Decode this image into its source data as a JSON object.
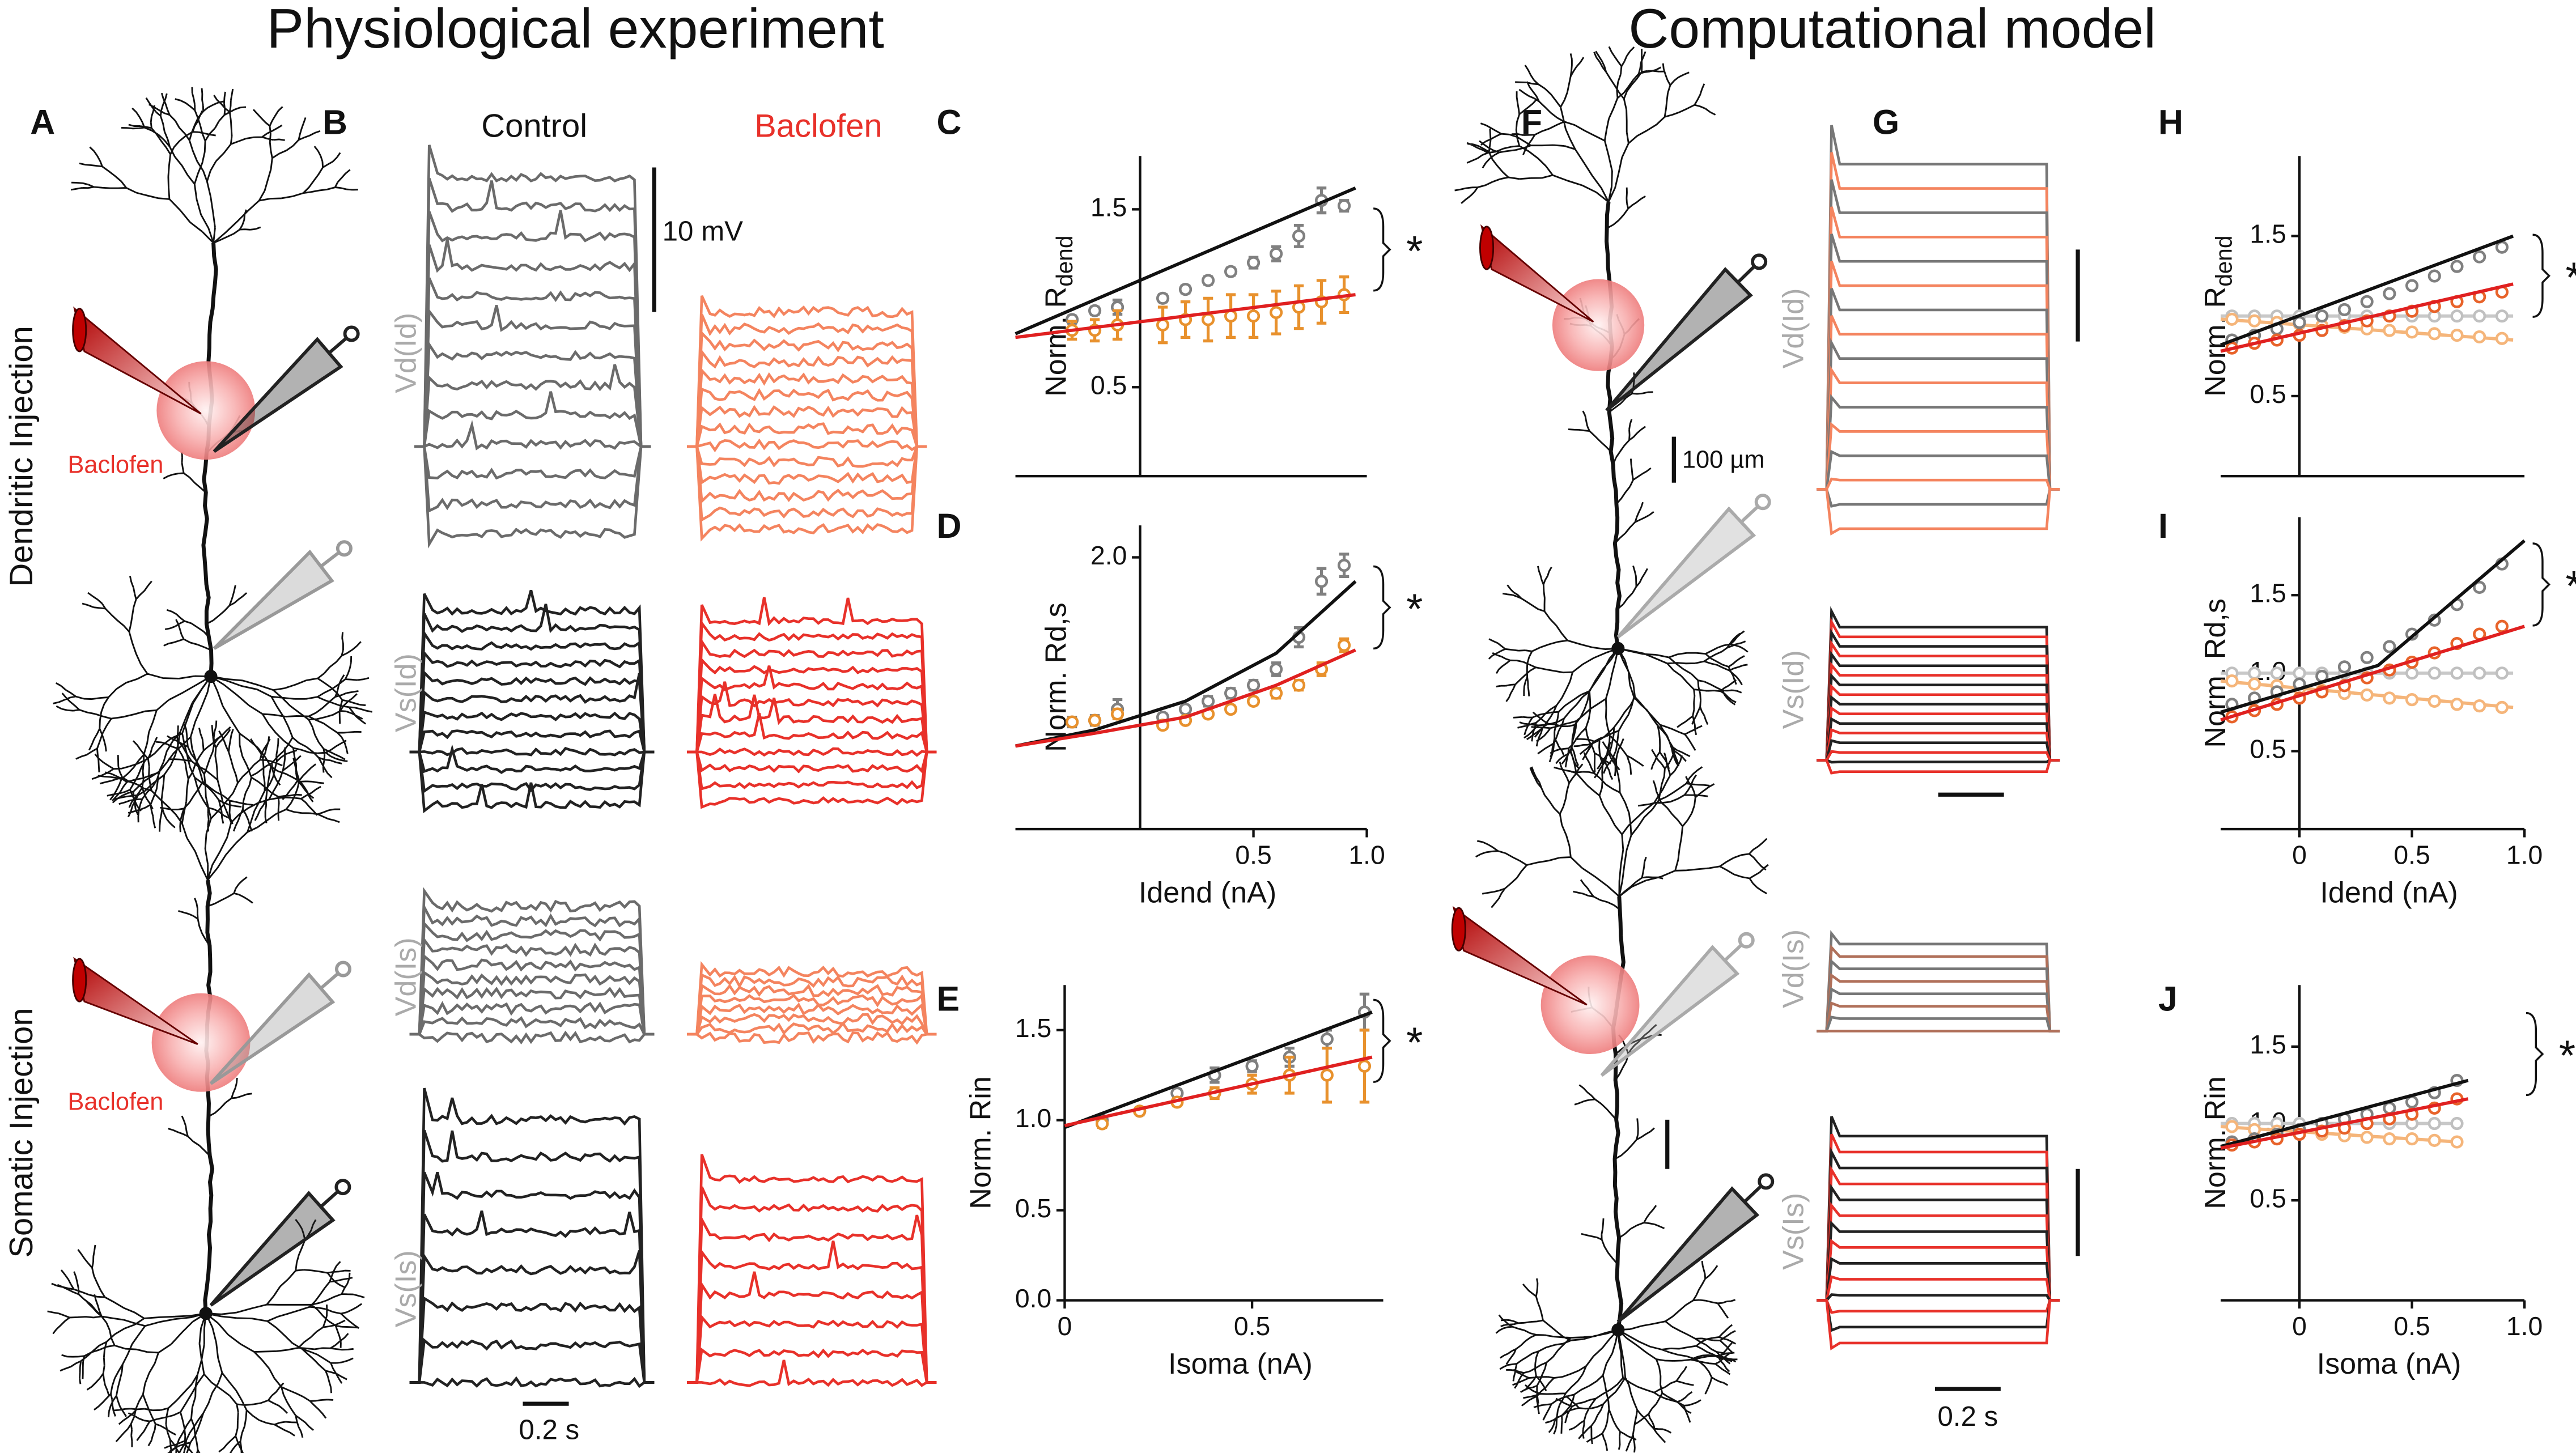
{
  "figure": {
    "titles": [
      "Physiological experiment",
      "Computational model"
    ],
    "panels": [
      "A",
      "B",
      "C",
      "D",
      "E",
      "F",
      "G",
      "H",
      "I",
      "J"
    ],
    "conditions": [
      "Control",
      "Baclofen"
    ],
    "injections": [
      "Dendritic Injection",
      "Somatic Injection"
    ],
    "drug_labels": [
      "Baclofen",
      "Baclofen"
    ],
    "trace_labels_B": [
      "Vd(Id)",
      "Vs(Id)",
      "Vd(Is)",
      "Vs(Is)"
    ],
    "trace_labels_G": [
      "Vd(Id)",
      "Vs(Id)",
      "Vd(Is)",
      "Vs(Is)"
    ],
    "scale_bars": [
      "10 mV",
      "0.2 s",
      "100 µm",
      "0.2 s"
    ]
  },
  "chart_data": [
    {
      "type": "scatter",
      "ylabel": "Norm. R",
      "ylabel_sub": "dend",
      "annotation": "*",
      "xlim": [
        -0.55,
        1.0
      ],
      "ylim": [
        0,
        1.8
      ],
      "xticks": [],
      "yticks": [
        0.5,
        1.5
      ],
      "series": [
        {
          "mode": "markers",
          "color": "#808080",
          "x": [
            -0.3,
            -0.2,
            -0.1,
            0.1,
            0.2,
            0.3,
            0.4,
            0.5,
            0.6,
            0.7,
            0.8,
            0.9
          ],
          "values": [
            0.88,
            0.93,
            0.95,
            1.0,
            1.05,
            1.1,
            1.15,
            1.2,
            1.25,
            1.35,
            1.55,
            1.52
          ],
          "errors": [
            0.02,
            0.02,
            0.04,
            0.02,
            0.02,
            0.02,
            0.02,
            0.03,
            0.04,
            0.06,
            0.07,
            0.03
          ]
        },
        {
          "mode": "markers",
          "color": "#e8912d",
          "x": [
            -0.3,
            -0.2,
            -0.1,
            0.1,
            0.2,
            0.3,
            0.4,
            0.5,
            0.6,
            0.7,
            0.8,
            0.9
          ],
          "values": [
            0.82,
            0.82,
            0.85,
            0.85,
            0.88,
            0.88,
            0.9,
            0.9,
            0.92,
            0.95,
            0.98,
            1.02
          ],
          "errors": [
            0.05,
            0.06,
            0.08,
            0.1,
            0.1,
            0.12,
            0.12,
            0.12,
            0.12,
            0.12,
            0.12,
            0.1
          ]
        },
        {
          "mode": "line",
          "color": "#111111",
          "x": [
            -0.55,
            0.95
          ],
          "values": [
            0.8,
            1.62
          ]
        },
        {
          "mode": "line",
          "color": "#e02020",
          "x": [
            -0.55,
            0.95
          ],
          "values": [
            0.78,
            1.02
          ]
        }
      ]
    },
    {
      "type": "scatter",
      "ylabel": "Norm. Rd,s",
      "xlabel": "Idend (nA)",
      "annotation": "*",
      "xlim": [
        -0.55,
        1.0
      ],
      "ylim": [
        0.3,
        2.2
      ],
      "xticks": [
        0.5,
        {
          "value": 1.0,
          "label": "1.0"
        }
      ],
      "yticks": [
        {
          "value": 2.0,
          "label": "2.0"
        }
      ],
      "series": [
        {
          "mode": "markers",
          "color": "#808080",
          "x": [
            -0.3,
            -0.2,
            -0.1,
            0.1,
            0.2,
            0.3,
            0.4,
            0.5,
            0.6,
            0.7,
            0.8,
            0.9
          ],
          "values": [
            0.97,
            0.98,
            1.05,
            1.0,
            1.05,
            1.1,
            1.15,
            1.2,
            1.3,
            1.5,
            1.85,
            1.95
          ],
          "errors": [
            0.03,
            0.03,
            0.06,
            0.02,
            0.02,
            0.03,
            0.03,
            0.03,
            0.04,
            0.06,
            0.08,
            0.07
          ]
        },
        {
          "mode": "markers",
          "color": "#e8912d",
          "x": [
            -0.3,
            -0.2,
            -0.1,
            0.1,
            0.2,
            0.3,
            0.4,
            0.5,
            0.6,
            0.7,
            0.8,
            0.9
          ],
          "values": [
            0.97,
            0.98,
            1.02,
            0.95,
            0.98,
            1.02,
            1.05,
            1.1,
            1.15,
            1.2,
            1.3,
            1.45
          ],
          "errors": [
            0.02,
            0.02,
            0.03,
            0.02,
            0.02,
            0.02,
            0.02,
            0.02,
            0.03,
            0.03,
            0.04,
            0.04
          ]
        },
        {
          "mode": "line",
          "color": "#111111",
          "x": [
            -0.55,
            -0.2,
            0.2,
            0.6,
            0.95
          ],
          "values": [
            0.82,
            0.92,
            1.1,
            1.4,
            1.85
          ]
        },
        {
          "mode": "line",
          "color": "#e02020",
          "x": [
            -0.55,
            -0.2,
            0.2,
            0.6,
            0.95
          ],
          "values": [
            0.82,
            0.9,
            1.0,
            1.2,
            1.42
          ]
        }
      ]
    },
    {
      "type": "scatter",
      "ylabel": "Norm. Rin",
      "xlabel": "Isoma (nA)",
      "annotation": "*",
      "xlim": [
        0,
        0.85
      ],
      "ylim": [
        0,
        1.75
      ],
      "xticks": [
        0,
        0.5
      ],
      "yticks": [
        {
          "value": 0.0,
          "label": "0.0"
        },
        0.5,
        {
          "value": 1.0,
          "label": "1.0"
        },
        1.5
      ],
      "series": [
        {
          "mode": "markers",
          "color": "#808080",
          "x": [
            0.1,
            0.2,
            0.3,
            0.4,
            0.5,
            0.6,
            0.7,
            0.8
          ],
          "values": [
            1.0,
            1.05,
            1.15,
            1.25,
            1.3,
            1.35,
            1.45,
            1.6
          ],
          "errors": [
            0.02,
            0.02,
            0.02,
            0.04,
            0.03,
            0.05,
            0.05,
            0.1
          ]
        },
        {
          "mode": "markers",
          "color": "#e8912d",
          "x": [
            0.1,
            0.2,
            0.3,
            0.4,
            0.5,
            0.6,
            0.7,
            0.8
          ],
          "values": [
            0.98,
            1.05,
            1.1,
            1.15,
            1.2,
            1.25,
            1.25,
            1.3
          ],
          "errors": [
            0.02,
            0.02,
            0.02,
            0.03,
            0.05,
            0.1,
            0.15,
            0.2
          ]
        },
        {
          "mode": "line",
          "color": "#111111",
          "x": [
            0,
            0.82
          ],
          "values": [
            0.96,
            1.6
          ]
        },
        {
          "mode": "line",
          "color": "#e02020",
          "x": [
            0,
            0.82
          ],
          "values": [
            0.97,
            1.35
          ]
        }
      ]
    },
    {
      "type": "scatter",
      "ylabel": "Norm. R",
      "ylabel_sub": "dend",
      "annotation": "*",
      "xlim": [
        -0.35,
        1.0
      ],
      "ylim": [
        0,
        2.0
      ],
      "xticks": [],
      "yticks": [
        0.5,
        1.5
      ],
      "series": [
        {
          "mode": "line",
          "color": "#c8c8c8",
          "x": [
            -0.35,
            0.95
          ],
          "values": [
            1.0,
            1.0
          ]
        },
        {
          "mode": "line",
          "color": "#f5b57a",
          "x": [
            -0.35,
            0.95
          ],
          "values": [
            0.98,
            0.85
          ]
        },
        {
          "mode": "markers",
          "color": "#c0c0c0",
          "x": [
            -0.3,
            -0.2,
            -0.1,
            0,
            0.1,
            0.2,
            0.3,
            0.4,
            0.5,
            0.6,
            0.7,
            0.8,
            0.9
          ],
          "values": [
            1.0,
            1.0,
            1.0,
            1.0,
            1.0,
            1.0,
            1.0,
            1.0,
            1.0,
            1.0,
            1.0,
            1.0,
            1.0
          ]
        },
        {
          "mode": "markers",
          "color": "#f5b57a",
          "x": [
            -0.3,
            -0.2,
            -0.1,
            0,
            0.1,
            0.2,
            0.3,
            0.4,
            0.5,
            0.6,
            0.7,
            0.8,
            0.9
          ],
          "values": [
            0.98,
            0.97,
            0.96,
            0.95,
            0.94,
            0.93,
            0.92,
            0.91,
            0.9,
            0.89,
            0.88,
            0.87,
            0.86
          ]
        },
        {
          "mode": "markers",
          "color": "#808080",
          "x": [
            -0.3,
            -0.2,
            -0.1,
            0,
            0.1,
            0.2,
            0.3,
            0.4,
            0.5,
            0.6,
            0.7,
            0.8,
            0.9
          ],
          "values": [
            0.85,
            0.88,
            0.92,
            0.96,
            1.0,
            1.04,
            1.09,
            1.14,
            1.19,
            1.25,
            1.31,
            1.37,
            1.43
          ]
        },
        {
          "mode": "markers",
          "color": "#e8632a",
          "x": [
            -0.3,
            -0.2,
            -0.1,
            0,
            0.1,
            0.2,
            0.3,
            0.4,
            0.5,
            0.6,
            0.7,
            0.8,
            0.9
          ],
          "values": [
            0.8,
            0.83,
            0.85,
            0.88,
            0.91,
            0.94,
            0.97,
            1.0,
            1.03,
            1.06,
            1.09,
            1.12,
            1.15
          ]
        },
        {
          "mode": "line",
          "color": "#111111",
          "x": [
            -0.35,
            0.95
          ],
          "values": [
            0.82,
            1.5
          ]
        },
        {
          "mode": "line",
          "color": "#e02020",
          "x": [
            -0.35,
            0.95
          ],
          "values": [
            0.78,
            1.2
          ]
        }
      ]
    },
    {
      "type": "scatter",
      "ylabel": "Norm. Rd,s",
      "xlabel": "Idend (nA)",
      "annotation": "*",
      "xlim": [
        -0.35,
        1.0
      ],
      "ylim": [
        0,
        2.0
      ],
      "xticks": [
        0,
        0.5,
        {
          "value": 1.0,
          "label": "1.0"
        }
      ],
      "yticks": [
        0.5,
        {
          "value": 1.0,
          "label": "1.0"
        },
        1.5
      ],
      "series": [
        {
          "mode": "line",
          "color": "#c8c8c8",
          "x": [
            -0.35,
            0.95
          ],
          "values": [
            1.0,
            1.0
          ]
        },
        {
          "mode": "line",
          "color": "#f5b57a",
          "x": [
            -0.35,
            0.95
          ],
          "values": [
            0.95,
            0.78
          ]
        },
        {
          "mode": "markers",
          "color": "#c0c0c0",
          "x": [
            -0.3,
            -0.2,
            -0.1,
            0,
            0.1,
            0.2,
            0.3,
            0.4,
            0.5,
            0.6,
            0.7,
            0.8,
            0.9
          ],
          "values": [
            1.0,
            1.0,
            1.0,
            1.0,
            1.0,
            1.0,
            1.0,
            1.0,
            1.0,
            1.0,
            1.0,
            1.0,
            1.0
          ]
        },
        {
          "mode": "markers",
          "color": "#f5b57a",
          "x": [
            -0.3,
            -0.2,
            -0.1,
            0,
            0.1,
            0.2,
            0.3,
            0.4,
            0.5,
            0.6,
            0.7,
            0.8,
            0.9
          ],
          "values": [
            0.95,
            0.93,
            0.92,
            0.9,
            0.89,
            0.87,
            0.86,
            0.84,
            0.83,
            0.82,
            0.8,
            0.79,
            0.78
          ]
        },
        {
          "mode": "markers",
          "color": "#808080",
          "x": [
            -0.3,
            -0.2,
            -0.1,
            0,
            0.1,
            0.2,
            0.3,
            0.4,
            0.5,
            0.6,
            0.7,
            0.8,
            0.9
          ],
          "values": [
            0.8,
            0.84,
            0.88,
            0.93,
            0.98,
            1.04,
            1.1,
            1.17,
            1.25,
            1.34,
            1.44,
            1.55,
            1.7
          ]
        },
        {
          "mode": "markers",
          "color": "#e8632a",
          "x": [
            -0.3,
            -0.2,
            -0.1,
            0,
            0.1,
            0.2,
            0.3,
            0.4,
            0.5,
            0.6,
            0.7,
            0.8,
            0.9
          ],
          "values": [
            0.72,
            0.76,
            0.8,
            0.84,
            0.88,
            0.92,
            0.97,
            1.02,
            1.07,
            1.13,
            1.19,
            1.25,
            1.3
          ]
        },
        {
          "mode": "line",
          "color": "#111111",
          "x": [
            -0.35,
            0.35,
            1.0
          ],
          "values": [
            0.75,
            1.05,
            1.85
          ]
        },
        {
          "mode": "line",
          "color": "#e02020",
          "x": [
            -0.35,
            1.0
          ],
          "values": [
            0.7,
            1.3
          ]
        }
      ]
    },
    {
      "type": "scatter",
      "ylabel": "Norm. Rin",
      "xlabel": "Isoma (nA)",
      "annotation": "*",
      "xlim": [
        -0.35,
        1.0
      ],
      "ylim": [
        -0.15,
        1.9
      ],
      "xticks": [
        0,
        0.5,
        {
          "value": 1.0,
          "label": "1.0"
        }
      ],
      "yticks": [
        0.5,
        {
          "value": 1.0,
          "label": "1.0"
        },
        1.5
      ],
      "series": [
        {
          "mode": "line",
          "color": "#c8c8c8",
          "x": [
            -0.35,
            0.7
          ],
          "values": [
            1.0,
            1.0
          ]
        },
        {
          "mode": "line",
          "color": "#f5b57a",
          "x": [
            -0.35,
            0.7
          ],
          "values": [
            0.98,
            0.88
          ]
        },
        {
          "mode": "markers",
          "color": "#c0c0c0",
          "x": [
            -0.3,
            -0.2,
            -0.1,
            0,
            0.1,
            0.2,
            0.3,
            0.4,
            0.5,
            0.6,
            0.7
          ],
          "values": [
            1.0,
            1.0,
            1.0,
            1.0,
            1.0,
            1.0,
            1.0,
            1.0,
            1.0,
            1.0,
            1.0
          ]
        },
        {
          "mode": "markers",
          "color": "#f5b57a",
          "x": [
            -0.3,
            -0.2,
            -0.1,
            0,
            0.1,
            0.2,
            0.3,
            0.4,
            0.5,
            0.6,
            0.7
          ],
          "values": [
            0.98,
            0.96,
            0.95,
            0.94,
            0.93,
            0.92,
            0.91,
            0.9,
            0.9,
            0.89,
            0.88
          ]
        },
        {
          "mode": "markers",
          "color": "#808080",
          "x": [
            -0.3,
            -0.2,
            -0.1,
            0,
            0.1,
            0.2,
            0.3,
            0.4,
            0.5,
            0.6,
            0.7
          ],
          "values": [
            0.88,
            0.9,
            0.93,
            0.96,
            1.0,
            1.03,
            1.06,
            1.1,
            1.14,
            1.2,
            1.28
          ]
        },
        {
          "mode": "markers",
          "color": "#e8632a",
          "x": [
            -0.3,
            -0.2,
            -0.1,
            0,
            0.1,
            0.2,
            0.3,
            0.4,
            0.5,
            0.6,
            0.7
          ],
          "values": [
            0.86,
            0.88,
            0.9,
            0.93,
            0.95,
            0.97,
            1.0,
            1.03,
            1.06,
            1.1,
            1.16
          ]
        },
        {
          "mode": "line",
          "color": "#111111",
          "x": [
            -0.35,
            0.75
          ],
          "values": [
            0.85,
            1.28
          ]
        },
        {
          "mode": "line",
          "color": "#e02020",
          "x": [
            -0.35,
            0.75
          ],
          "values": [
            0.84,
            1.16
          ]
        }
      ]
    }
  ]
}
